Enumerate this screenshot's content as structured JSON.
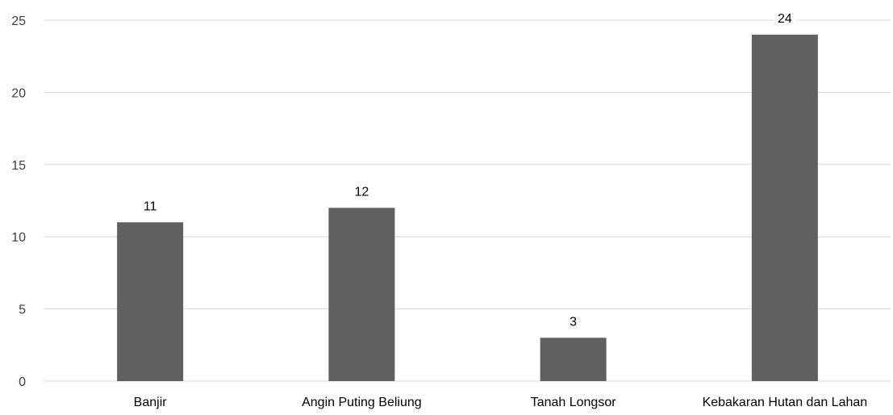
{
  "chart_data": {
    "type": "bar",
    "title": "",
    "xlabel": "",
    "ylabel": "",
    "categories": [
      "Banjir",
      "Angin Puting Beliung",
      "Tanah Longsor",
      "Kebakaran Hutan dan Lahan"
    ],
    "values": [
      11,
      12,
      3,
      24
    ],
    "data_labels": [
      "11",
      "12",
      "3",
      "24"
    ],
    "ylim": [
      0,
      25
    ],
    "yticks": [
      0,
      5,
      10,
      15,
      20,
      25
    ],
    "ytick_labels": [
      "0",
      "5",
      "10",
      "15",
      "20",
      "25"
    ],
    "grid": true,
    "legend": "none",
    "bar_color": "#606060",
    "grid_color": "#d9d9d9"
  }
}
